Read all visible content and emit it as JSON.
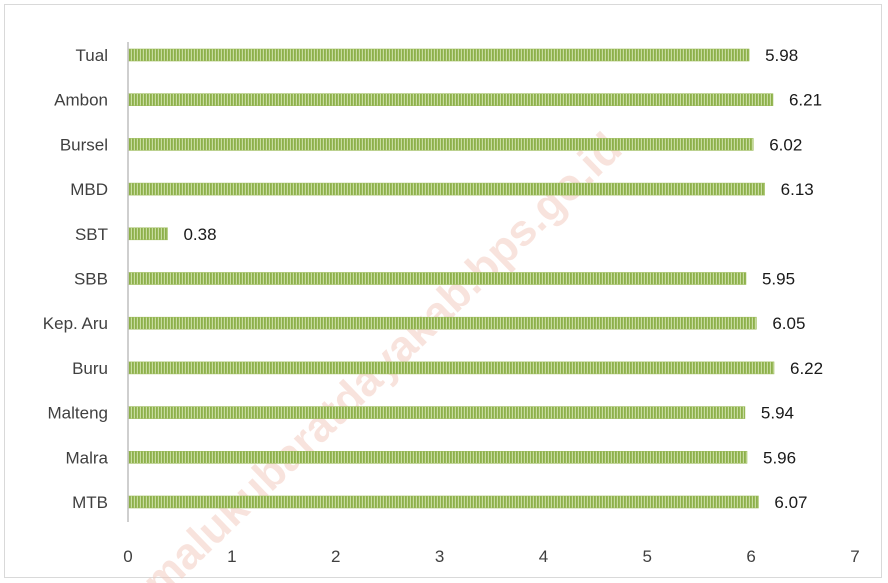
{
  "chart_data": {
    "type": "bar",
    "orientation": "horizontal",
    "categories": [
      "Tual",
      "Ambon",
      "Bursel",
      "MBD",
      "SBT",
      "SBB",
      "Kep. Aru",
      "Buru",
      "Malteng",
      "Malra",
      "MTB"
    ],
    "values": [
      5.98,
      6.21,
      6.02,
      6.13,
      0.38,
      5.95,
      6.05,
      6.22,
      5.94,
      5.96,
      6.07
    ],
    "xlim": [
      0,
      7
    ],
    "xticks": [
      0,
      1,
      2,
      3,
      4,
      5,
      6,
      7
    ],
    "bar_color": "#9bbb59",
    "bar_pattern": "vertical-stripes",
    "grid": false,
    "legend": "none"
  },
  "watermark": "malukubaratdayakab.bps.go.id",
  "watermark_color": "#f2c9bd"
}
